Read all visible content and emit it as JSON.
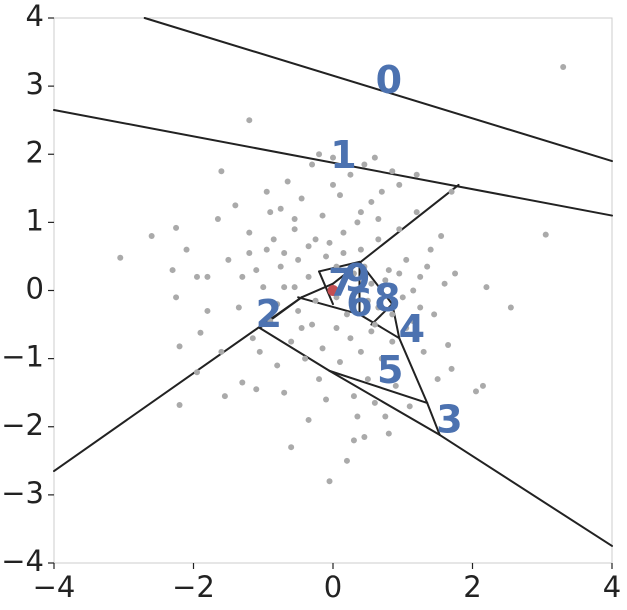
{
  "chart_data": {
    "type": "scatter",
    "xlim": [
      -4,
      4
    ],
    "ylim": [
      -4,
      4
    ],
    "x_ticks": [
      -4,
      -2,
      0,
      2,
      4
    ],
    "y_ticks": [
      -4,
      -3,
      -2,
      -1,
      0,
      1,
      2,
      3,
      4
    ],
    "x_tick_labels": [
      "−4",
      "−2",
      "0",
      "2",
      "4"
    ],
    "y_tick_labels": [
      "−4",
      "−3",
      "−2",
      "−1",
      "0",
      "1",
      "2",
      "3",
      "4"
    ],
    "grid": false,
    "colors": {
      "points": "#aaaaaa",
      "highlight": "#c44e52",
      "labels": "#4c72b0",
      "lines": "#222222"
    },
    "highlight_point": {
      "x": 0.0,
      "y": 0.0
    },
    "region_labels": [
      {
        "text": "0",
        "x": 0.8,
        "y": 3.05
      },
      {
        "text": "1",
        "x": 0.15,
        "y": 1.95
      },
      {
        "text": "2",
        "x": -0.92,
        "y": -0.38
      },
      {
        "text": "3",
        "x": 1.67,
        "y": -1.93
      },
      {
        "text": "4",
        "x": 1.13,
        "y": -0.6
      },
      {
        "text": "5",
        "x": 0.82,
        "y": -1.2
      },
      {
        "text": "6",
        "x": 0.38,
        "y": -0.22
      },
      {
        "text": "7",
        "x": 0.12,
        "y": 0.08
      },
      {
        "text": "8",
        "x": 0.78,
        "y": -0.15
      },
      {
        "text": "9",
        "x": 0.35,
        "y": 0.15
      }
    ],
    "boundaries": [
      [
        [
          -2.7,
          4.0
        ],
        [
          4.0,
          1.9
        ]
      ],
      [
        [
          -4.0,
          2.65
        ],
        [
          4.0,
          1.1
        ]
      ],
      [
        [
          -4.0,
          -2.65
        ],
        [
          -0.45,
          -0.1
        ]
      ],
      [
        [
          -0.45,
          -0.1
        ],
        [
          0.0,
          0.1
        ]
      ],
      [
        [
          0.0,
          0.1
        ],
        [
          1.8,
          1.55
        ]
      ],
      [
        [
          -1.05,
          -0.55
        ],
        [
          -0.45,
          -0.1
        ]
      ],
      [
        [
          -1.05,
          -0.55
        ],
        [
          -0.05,
          -1.18
        ]
      ],
      [
        [
          -0.05,
          -1.18
        ],
        [
          1.35,
          -1.65
        ]
      ],
      [
        [
          1.35,
          -1.65
        ],
        [
          1.53,
          -2.12
        ]
      ],
      [
        [
          -0.05,
          -1.18
        ],
        [
          1.53,
          -2.12
        ]
      ],
      [
        [
          1.53,
          -2.12
        ],
        [
          4.0,
          -3.75
        ]
      ],
      [
        [
          -0.5,
          -0.1
        ],
        [
          0.38,
          -0.35
        ]
      ],
      [
        [
          0.38,
          -0.35
        ],
        [
          0.95,
          -0.7
        ]
      ],
      [
        [
          0.95,
          -0.7
        ],
        [
          1.35,
          -1.65
        ]
      ],
      [
        [
          0.38,
          -0.35
        ],
        [
          0.38,
          0.42
        ]
      ],
      [
        [
          0.38,
          0.42
        ],
        [
          0.85,
          -0.2
        ]
      ],
      [
        [
          0.85,
          -0.2
        ],
        [
          0.95,
          -0.7
        ]
      ],
      [
        [
          0.55,
          -0.5
        ],
        [
          0.85,
          -0.2
        ]
      ],
      [
        [
          -0.2,
          0.28
        ],
        [
          0.38,
          0.42
        ]
      ],
      [
        [
          -0.2,
          0.28
        ],
        [
          0.0,
          -0.2
        ]
      ]
    ],
    "points": [
      [
        3.3,
        3.28
      ],
      [
        3.05,
        0.82
      ],
      [
        2.55,
        -0.25
      ],
      [
        2.2,
        0.05
      ],
      [
        2.15,
        -1.4
      ],
      [
        2.05,
        -1.48
      ],
      [
        -3.05,
        0.48
      ],
      [
        -2.6,
        0.8
      ],
      [
        -2.25,
        0.92
      ],
      [
        -2.1,
        0.6
      ],
      [
        -2.2,
        -0.82
      ],
      [
        -2.3,
        0.3
      ],
      [
        -2.25,
        -0.1
      ],
      [
        -2.2,
        -1.68
      ],
      [
        -1.95,
        0.2
      ],
      [
        -1.9,
        -0.62
      ],
      [
        -1.95,
        -1.2
      ],
      [
        -1.8,
        -0.3
      ],
      [
        -1.8,
        0.2
      ],
      [
        -1.65,
        1.05
      ],
      [
        -1.6,
        -0.9
      ],
      [
        -1.55,
        -1.55
      ],
      [
        -1.4,
        1.25
      ],
      [
        -1.3,
        0.2
      ],
      [
        -1.3,
        -1.35
      ],
      [
        -1.2,
        0.55
      ],
      [
        -1.1,
        0.3
      ],
      [
        -1.1,
        -1.45
      ],
      [
        -1.05,
        -0.9
      ],
      [
        -1.0,
        0.05
      ],
      [
        -0.95,
        0.6
      ],
      [
        -0.9,
        1.15
      ],
      [
        -0.85,
        0.75
      ],
      [
        -0.8,
        -0.2
      ],
      [
        -0.8,
        -1.1
      ],
      [
        -0.75,
        0.35
      ],
      [
        -0.7,
        0.05
      ],
      [
        -0.65,
        1.6
      ],
      [
        -0.6,
        -0.75
      ],
      [
        -0.6,
        -2.3
      ],
      [
        -0.55,
        0.9
      ],
      [
        -0.5,
        0.45
      ],
      [
        -0.5,
        -0.3
      ],
      [
        -0.45,
        1.35
      ],
      [
        -0.4,
        -1.0
      ],
      [
        -0.35,
        0.2
      ],
      [
        -0.3,
        1.85
      ],
      [
        -0.3,
        -0.5
      ],
      [
        -0.25,
        0.75
      ],
      [
        -0.2,
        -1.3
      ],
      [
        -0.15,
        1.1
      ],
      [
        -0.1,
        0.5
      ],
      [
        -0.1,
        -1.6
      ],
      [
        -0.05,
        -2.8
      ],
      [
        0.0,
        1.95
      ],
      [
        0.05,
        0.35
      ],
      [
        0.05,
        -0.55
      ],
      [
        0.1,
        1.4
      ],
      [
        0.1,
        -1.05
      ],
      [
        0.15,
        0.85
      ],
      [
        0.2,
        -2.5
      ],
      [
        0.25,
        1.7
      ],
      [
        0.25,
        -0.7
      ],
      [
        0.3,
        0.25
      ],
      [
        0.3,
        -1.55
      ],
      [
        0.35,
        1.0
      ],
      [
        0.35,
        -1.85
      ],
      [
        0.4,
        0.6
      ],
      [
        0.4,
        -0.9
      ],
      [
        0.45,
        1.85
      ],
      [
        0.45,
        -2.15
      ],
      [
        0.5,
        -0.15
      ],
      [
        0.5,
        -1.3
      ],
      [
        0.55,
        1.3
      ],
      [
        0.55,
        0.1
      ],
      [
        0.6,
        -1.65
      ],
      [
        0.6,
        -0.5
      ],
      [
        0.65,
        0.75
      ],
      [
        0.7,
        1.45
      ],
      [
        0.7,
        -1.0
      ],
      [
        0.75,
        -1.85
      ],
      [
        0.8,
        0.3
      ],
      [
        0.85,
        1.75
      ],
      [
        0.85,
        -0.35
      ],
      [
        0.9,
        -1.4
      ],
      [
        0.95,
        0.9
      ],
      [
        1.0,
        -0.1
      ],
      [
        1.05,
        0.45
      ],
      [
        1.1,
        -1.7
      ],
      [
        1.15,
        -0.45
      ],
      [
        1.2,
        1.15
      ],
      [
        1.25,
        0.2
      ],
      [
        1.3,
        -0.9
      ],
      [
        1.4,
        0.6
      ],
      [
        1.45,
        -0.35
      ],
      [
        1.5,
        -1.3
      ],
      [
        1.55,
        0.8
      ],
      [
        1.6,
        0.1
      ],
      [
        1.65,
        -0.8
      ],
      [
        1.75,
        0.25
      ],
      [
        1.7,
        1.45
      ],
      [
        1.7,
        -1.15
      ],
      [
        -0.9,
        -0.45
      ],
      [
        -0.7,
        0.55
      ],
      [
        -0.55,
        0.05
      ],
      [
        -0.45,
        -0.55
      ],
      [
        -0.35,
        0.65
      ],
      [
        -0.25,
        -0.15
      ],
      [
        -0.15,
        -0.85
      ],
      [
        -0.05,
        0.7
      ],
      [
        0.05,
        -0.1
      ],
      [
        0.15,
        0.55
      ],
      [
        0.2,
        -0.35
      ],
      [
        0.3,
        -0.15
      ],
      [
        0.45,
        0.35
      ],
      [
        0.55,
        -0.6
      ],
      [
        0.65,
        -0.25
      ],
      [
        0.75,
        0.15
      ],
      [
        0.85,
        -0.75
      ],
      [
        0.95,
        0.25
      ],
      [
        1.05,
        -0.55
      ],
      [
        1.15,
        0.0
      ],
      [
        1.25,
        -0.25
      ],
      [
        1.35,
        0.35
      ],
      [
        -1.5,
        0.45
      ],
      [
        -1.35,
        -0.25
      ],
      [
        -1.2,
        0.85
      ],
      [
        -1.15,
        -0.7
      ],
      [
        -0.95,
        1.45
      ],
      [
        -0.7,
        -1.5
      ],
      [
        -0.55,
        1.05
      ],
      [
        -0.2,
        2.0
      ],
      [
        0.6,
        1.95
      ],
      [
        0.95,
        1.55
      ],
      [
        -0.35,
        -1.9
      ],
      [
        0.3,
        -2.2
      ],
      [
        0.8,
        -2.1
      ],
      [
        1.2,
        1.7
      ],
      [
        -1.6,
        1.75
      ],
      [
        -1.2,
        2.5
      ],
      [
        -0.75,
        1.2
      ],
      [
        0.0,
        1.55
      ],
      [
        0.4,
        1.15
      ],
      [
        0.65,
        1.05
      ]
    ]
  }
}
